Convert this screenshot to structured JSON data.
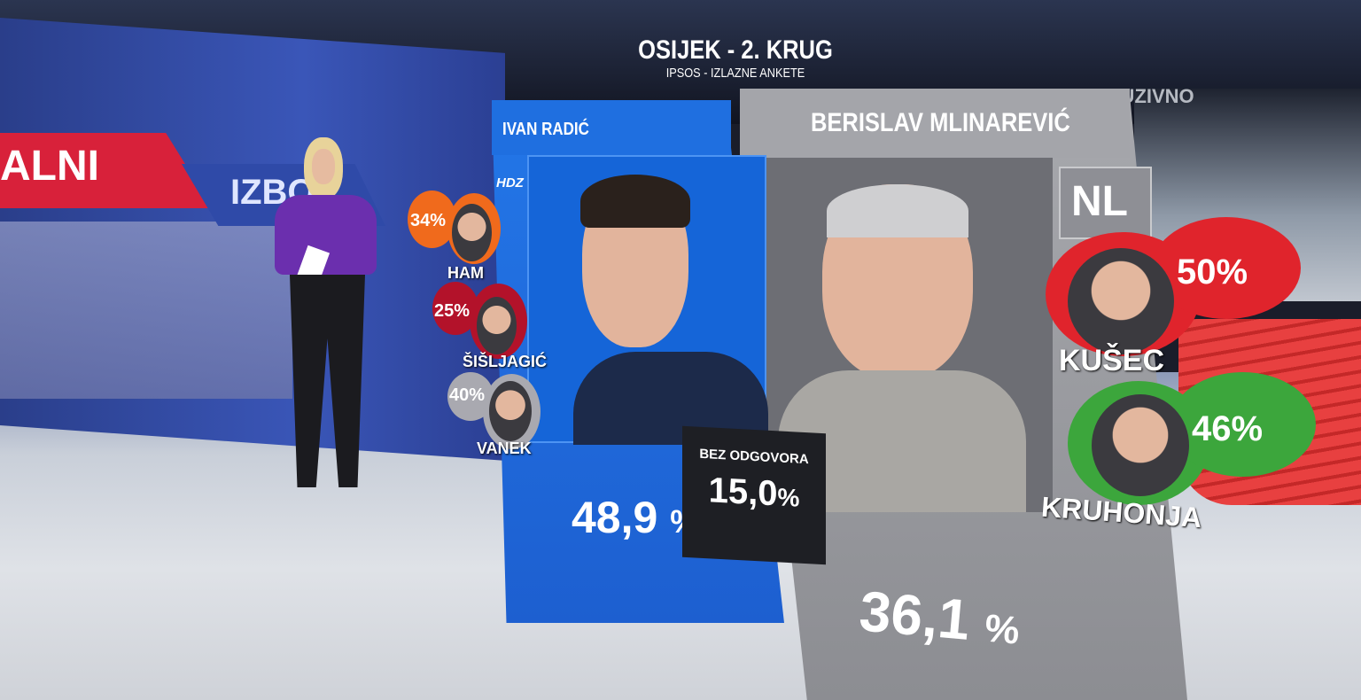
{
  "header": {
    "title": "OSIJEK - 2. KRUG",
    "subtitle": "IPSOS - IZLAZNE ANKETE",
    "exclusive": "EKSKLUZIVNO"
  },
  "video_wall": {
    "banner_red": "ALNI",
    "banner_blue": "IZBO"
  },
  "candidates": [
    {
      "name": "IVAN RADIĆ",
      "party": "HDZ",
      "percent": "48,9",
      "unit": "%",
      "color": "#1f6fe0"
    },
    {
      "name": "BERISLAV MLINAREVIĆ",
      "party": "NL",
      "percent": "36,1",
      "unit": "%",
      "color": "#a4a5aa"
    }
  ],
  "no_answer": {
    "label": "BEZ ODGOVORA",
    "percent": "15,0",
    "unit": "%"
  },
  "left_bubbles": [
    {
      "name": "HAM",
      "percent": "34%",
      "color": "#f06a1c"
    },
    {
      "name": "ŠIŠLJAGIĆ",
      "percent": "25%",
      "color": "#b3122a"
    },
    {
      "name": "VANEK",
      "percent": "40%",
      "color": "#a9a9b0"
    }
  ],
  "right_bubbles": [
    {
      "name": "KUŠEC",
      "percent": "50%",
      "color": "#e0242c"
    },
    {
      "name": "KRUHONJA",
      "percent": "46%",
      "color": "#3ca63c"
    }
  ]
}
